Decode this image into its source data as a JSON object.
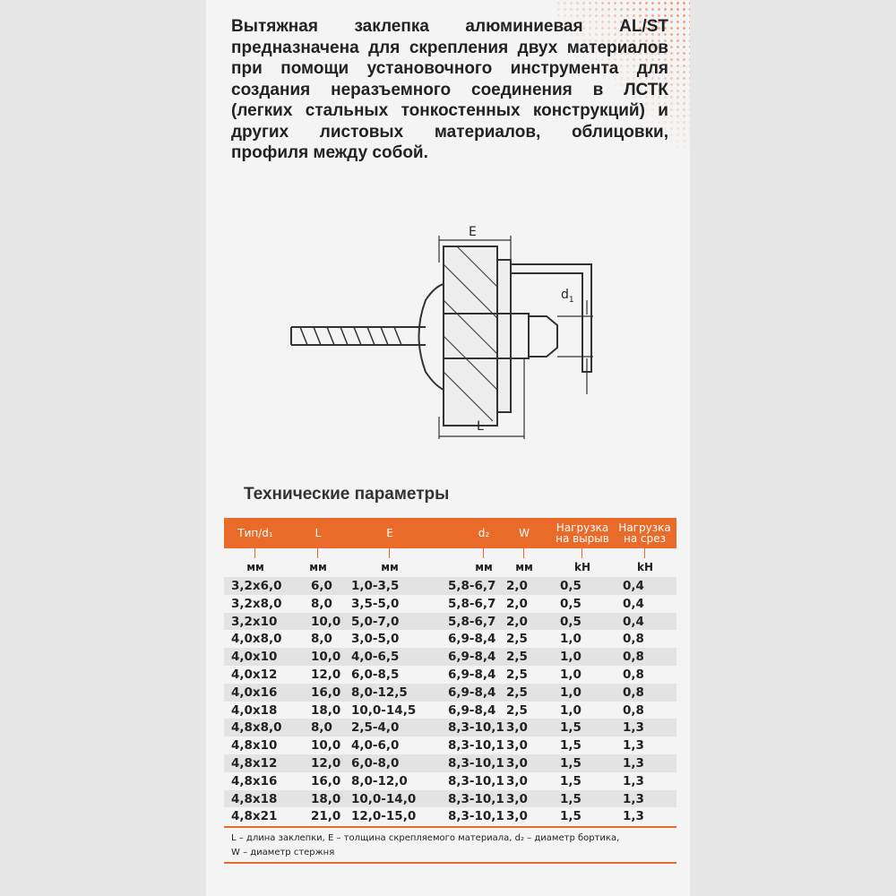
{
  "description": "Вытяжная заклепка алюминиевая AL/ST предназначена для скрепления двух материалов при помощи установочного инструмента для создания неразъемного соединения в ЛСТК (легких стальных тонкостенных конструкций) и других листовых материалов, облицовки, профиля между собой.",
  "diagram": {
    "label_e": "E",
    "label_d1": "d",
    "label_d1_sub": "1",
    "label_l": "L"
  },
  "section_title": "Технические параметры",
  "accent_color": "#ea6a2a",
  "table": {
    "headers": [
      "Тип/d₁",
      "L",
      "E",
      "d₂",
      "W",
      "Нагрузка на вырыв",
      "Нагрузка на срез"
    ],
    "units": [
      "мм",
      "мм",
      "мм",
      "мм",
      "мм",
      "kH",
      "kH"
    ],
    "rows": [
      [
        "3,2x6,0",
        "6,0",
        "1,0-3,5",
        "5,8-6,7",
        "2,0",
        "0,5",
        "0,4"
      ],
      [
        "3,2x8,0",
        "8,0",
        "3,5-5,0",
        "5,8-6,7",
        "2,0",
        "0,5",
        "0,4"
      ],
      [
        "3,2x10",
        "10,0",
        "5,0-7,0",
        "5,8-6,7",
        "2,0",
        "0,5",
        "0,4"
      ],
      [
        "4,0x8,0",
        "8,0",
        "3,0-5,0",
        "6,9-8,4",
        "2,5",
        "1,0",
        "0,8"
      ],
      [
        "4,0x10",
        "10,0",
        "4,0-6,5",
        "6,9-8,4",
        "2,5",
        "1,0",
        "0,8"
      ],
      [
        "4,0x12",
        "12,0",
        "6,0-8,5",
        "6,9-8,4",
        "2,5",
        "1,0",
        "0,8"
      ],
      [
        "4,0x16",
        "16,0",
        "8,0-12,5",
        "6,9-8,4",
        "2,5",
        "1,0",
        "0,8"
      ],
      [
        "4,0x18",
        "18,0",
        "10,0-14,5",
        "6,9-8,4",
        "2,5",
        "1,0",
        "0,8"
      ],
      [
        "4,8x8,0",
        "8,0",
        "2,5-4,0",
        "8,3-10,1",
        "3,0",
        "1,5",
        "1,3"
      ],
      [
        "4,8x10",
        "10,0",
        "4,0-6,0",
        "8,3-10,1",
        "3,0",
        "1,5",
        "1,3"
      ],
      [
        "4,8x12",
        "12,0",
        "6,0-8,0",
        "8,3-10,1",
        "3,0",
        "1,5",
        "1,3"
      ],
      [
        "4,8x16",
        "16,0",
        "8,0-12,0",
        "8,3-10,1",
        "3,0",
        "1,5",
        "1,3"
      ],
      [
        "4,8x18",
        "18,0",
        "10,0-14,0",
        "8,3-10,1",
        "3,0",
        "1,5",
        "1,3"
      ],
      [
        "4,8x21",
        "21,0",
        "12,0-15,0",
        "8,3-10,1",
        "3,0",
        "1,5",
        "1,3"
      ]
    ],
    "footnote_1": "L – длина заклепки, E – толщина скрепляемого материала, d₂ – диаметр бортика,",
    "footnote_2": "W – диаметр стержня"
  }
}
